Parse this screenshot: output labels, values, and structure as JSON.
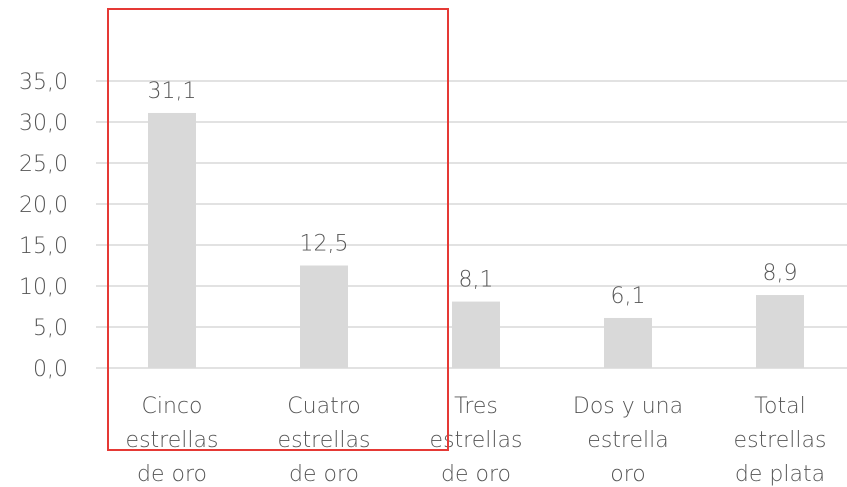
{
  "chart_data": {
    "type": "bar",
    "title": "",
    "xlabel": "",
    "ylabel": "",
    "categories": [
      [
        "Cinco",
        "estrellas",
        "de oro"
      ],
      [
        "Cuatro",
        "estrellas",
        "de oro"
      ],
      [
        "Tres",
        "estrellas",
        "de oro"
      ],
      [
        "Dos y una",
        "estrella",
        "oro"
      ],
      [
        "Total",
        "estrellas",
        "de plata"
      ]
    ],
    "values": [
      31.1,
      12.5,
      8.1,
      6.1,
      8.9
    ],
    "value_labels": [
      "31,1",
      "12,5",
      "8,1",
      "6,1",
      "8,9"
    ],
    "ylim": [
      0,
      35
    ],
    "yticks": [
      0,
      5,
      10,
      15,
      20,
      25,
      30,
      35
    ],
    "ytick_labels": [
      "0,0",
      "5,0",
      "10,0",
      "15,0",
      "20,0",
      "25,0",
      "30,0",
      "35,0"
    ],
    "grid": true,
    "legend": "none",
    "highlight_box": {
      "categories": [
        0,
        1
      ],
      "color": "#e53935"
    },
    "colors": {
      "bar": "#d9d9d9",
      "grid": "#d9d9d9",
      "text": "#555555"
    }
  }
}
